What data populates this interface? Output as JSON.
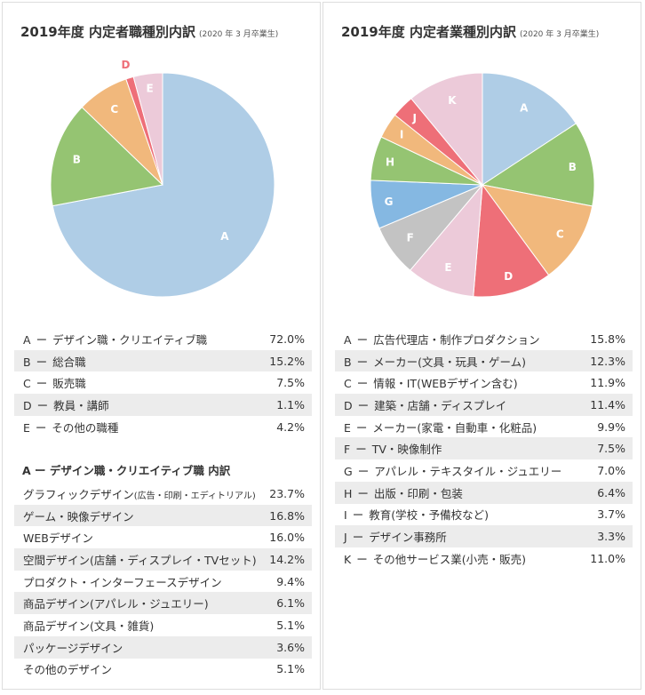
{
  "left": {
    "title": "2019年度 内定者職種別内訳",
    "subtitle": "(2020 年 3 月卒業生)",
    "chart_data": {
      "type": "pie",
      "title": "2019年度 内定者職種別内訳",
      "categories": [
        "A",
        "B",
        "C",
        "D",
        "E"
      ],
      "values": [
        72.0,
        15.2,
        7.5,
        1.1,
        4.2
      ],
      "colors": [
        "#afcde6",
        "#95c472",
        "#f1b87c",
        "#ee6f78",
        "#eccad9"
      ],
      "label_colors": [
        "#ffffff",
        "#ffffff",
        "#ffffff",
        "#ee6f78",
        "#ffffff"
      ]
    },
    "rows": [
      {
        "code": "A",
        "label": "デザイン職・クリエイティブ職",
        "value": "72.0%"
      },
      {
        "code": "B",
        "label": "総合職",
        "value": "15.2%"
      },
      {
        "code": "C",
        "label": "販売職",
        "value": "7.5%"
      },
      {
        "code": "D",
        "label": "教員・講師",
        "value": "1.1%"
      },
      {
        "code": "E",
        "label": "その他の職種",
        "value": "4.2%"
      }
    ],
    "breakdown_title": "A ー デザイン職・クリエイティブ職 内訳",
    "breakdown": [
      {
        "label": "グラフィックデザイン",
        "note": "(広告・印刷・エディトリアル)",
        "value": "23.7%"
      },
      {
        "label": "ゲーム・映像デザイン",
        "note": "",
        "value": "16.8%"
      },
      {
        "label": "WEBデザイン",
        "note": "",
        "value": "16.0%"
      },
      {
        "label": "空間デザイン(店舗・ディスプレイ・TVセット)",
        "note": "",
        "value": "14.2%"
      },
      {
        "label": "プロダクト・インターフェースデザイン",
        "note": "",
        "value": "9.4%"
      },
      {
        "label": "商品デザイン(アパレル・ジュエリー)",
        "note": "",
        "value": "6.1%"
      },
      {
        "label": "商品デザイン(文具・雑貨)",
        "note": "",
        "value": "5.1%"
      },
      {
        "label": "パッケージデザイン",
        "note": "",
        "value": "3.6%"
      },
      {
        "label": "その他のデザイン",
        "note": "",
        "value": "5.1%"
      }
    ]
  },
  "right": {
    "title": "2019年度 内定者業種別内訳",
    "subtitle": "(2020 年 3 月卒業生)",
    "chart_data": {
      "type": "pie",
      "title": "2019年度 内定者業種別内訳",
      "categories": [
        "A",
        "B",
        "C",
        "D",
        "E",
        "F",
        "G",
        "H",
        "I",
        "J",
        "K"
      ],
      "values": [
        15.8,
        12.3,
        11.9,
        11.4,
        9.9,
        7.5,
        7.0,
        6.4,
        3.7,
        3.3,
        11.0
      ],
      "colors": [
        "#afcde6",
        "#95c472",
        "#f1b87c",
        "#ee6f78",
        "#eccad9",
        "#c3c3c3",
        "#85b8e2",
        "#95c472",
        "#f1b87c",
        "#ee6f78",
        "#eccad9"
      ],
      "label_colors": [
        "#ffffff",
        "#ffffff",
        "#ffffff",
        "#ffffff",
        "#ffffff",
        "#ffffff",
        "#ffffff",
        "#ffffff",
        "#ffffff",
        "#ffffff",
        "#ffffff"
      ]
    },
    "rows": [
      {
        "code": "A",
        "label": "広告代理店・制作プロダクション",
        "value": "15.8%"
      },
      {
        "code": "B",
        "label": "メーカー(文具・玩具・ゲーム)",
        "value": "12.3%"
      },
      {
        "code": "C",
        "label": "情報・IT(WEBデザイン含む)",
        "value": "11.9%"
      },
      {
        "code": "D",
        "label": "建築・店舗・ディスプレイ",
        "value": "11.4%"
      },
      {
        "code": "E",
        "label": "メーカー(家電・自動車・化粧品)",
        "value": "9.9%"
      },
      {
        "code": "F",
        "label": "TV・映像制作",
        "value": "7.5%"
      },
      {
        "code": "G",
        "label": "アパレル・テキスタイル・ジュエリー",
        "value": "7.0%"
      },
      {
        "code": "H",
        "label": "出版・印刷・包装",
        "value": "6.4%"
      },
      {
        "code": "I",
        "label": "教育(学校・予備校など)",
        "value": "3.7%"
      },
      {
        "code": "J",
        "label": "デザイン事務所",
        "value": "3.3%"
      },
      {
        "code": "K",
        "label": "その他サービス業(小売・販売)",
        "value": "11.0%"
      }
    ]
  }
}
